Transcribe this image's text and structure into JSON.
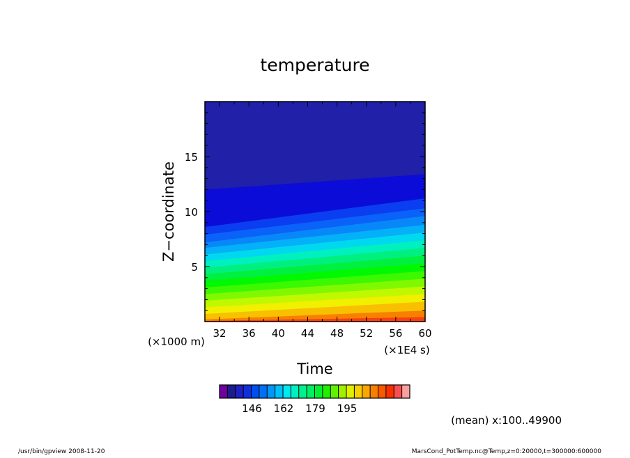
{
  "chart_data": {
    "type": "heatmap",
    "title": "temperature",
    "xlabel": "Time",
    "xunit": "(×1E4 s)",
    "ylabel": "Z−coordinate",
    "yunit": "(×1000 m)",
    "xlim": [
      30,
      60
    ],
    "ylim": [
      0,
      20
    ],
    "x_ticks": [
      "32",
      "36",
      "40",
      "44",
      "48",
      "52",
      "56",
      "60"
    ],
    "y_ticks": [
      "5",
      "10",
      "15"
    ],
    "contours": {
      "comment_units": "z of band boundary in km at t=30 and t=60 (x1E4 s)",
      "boundaries": [
        [
          12.0,
          13.4
        ],
        [
          8.6,
          11.2
        ],
        [
          7.9,
          10.3
        ],
        [
          7.2,
          9.6
        ],
        [
          6.7,
          8.8
        ],
        [
          6.1,
          8.1
        ],
        [
          5.5,
          7.4
        ],
        [
          4.9,
          6.7
        ],
        [
          4.3,
          6.0
        ],
        [
          3.7,
          5.3
        ],
        [
          3.1,
          4.6
        ],
        [
          2.5,
          3.9
        ],
        [
          1.9,
          3.2
        ],
        [
          1.3,
          2.5
        ],
        [
          0.7,
          1.8
        ],
        [
          0.2,
          1.0
        ]
      ],
      "band_colors": [
        "#2020a8",
        "#0c0cd8",
        "#0a3ef0",
        "#0a62f8",
        "#0888f8",
        "#04b0f8",
        "#00d8f0",
        "#00f0c0",
        "#00f080",
        "#00f040",
        "#00f800",
        "#3cf800",
        "#80f800",
        "#c0f800",
        "#f0f000",
        "#f8c000",
        "#f88000"
      ],
      "top_color": "#2020a8",
      "bottom_color": "#f84010"
    },
    "colorbar": {
      "colors": [
        "#7000a0",
        "#1c1c90",
        "#2020c0",
        "#1030e0",
        "#0050f0",
        "#0070f8",
        "#0098f8",
        "#00c0f8",
        "#00e8f0",
        "#00f0c0",
        "#00f090",
        "#00f060",
        "#00f030",
        "#20f000",
        "#60f000",
        "#a0f000",
        "#e0f000",
        "#f8d000",
        "#f8a800",
        "#f88000",
        "#f85800",
        "#f83000",
        "#f85050",
        "#f8a0a0"
      ],
      "tick_labels": [
        "146",
        "162",
        "179",
        "195"
      ],
      "tick_positions": [
        4,
        8,
        12,
        16
      ]
    },
    "annotation": "(mean) x:100..49900"
  },
  "footer": {
    "left": "/usr/bin/gpview  2008-11-20",
    "right": "MarsCond_PotTemp.nc@Temp,z=0:20000,t=300000:600000"
  }
}
